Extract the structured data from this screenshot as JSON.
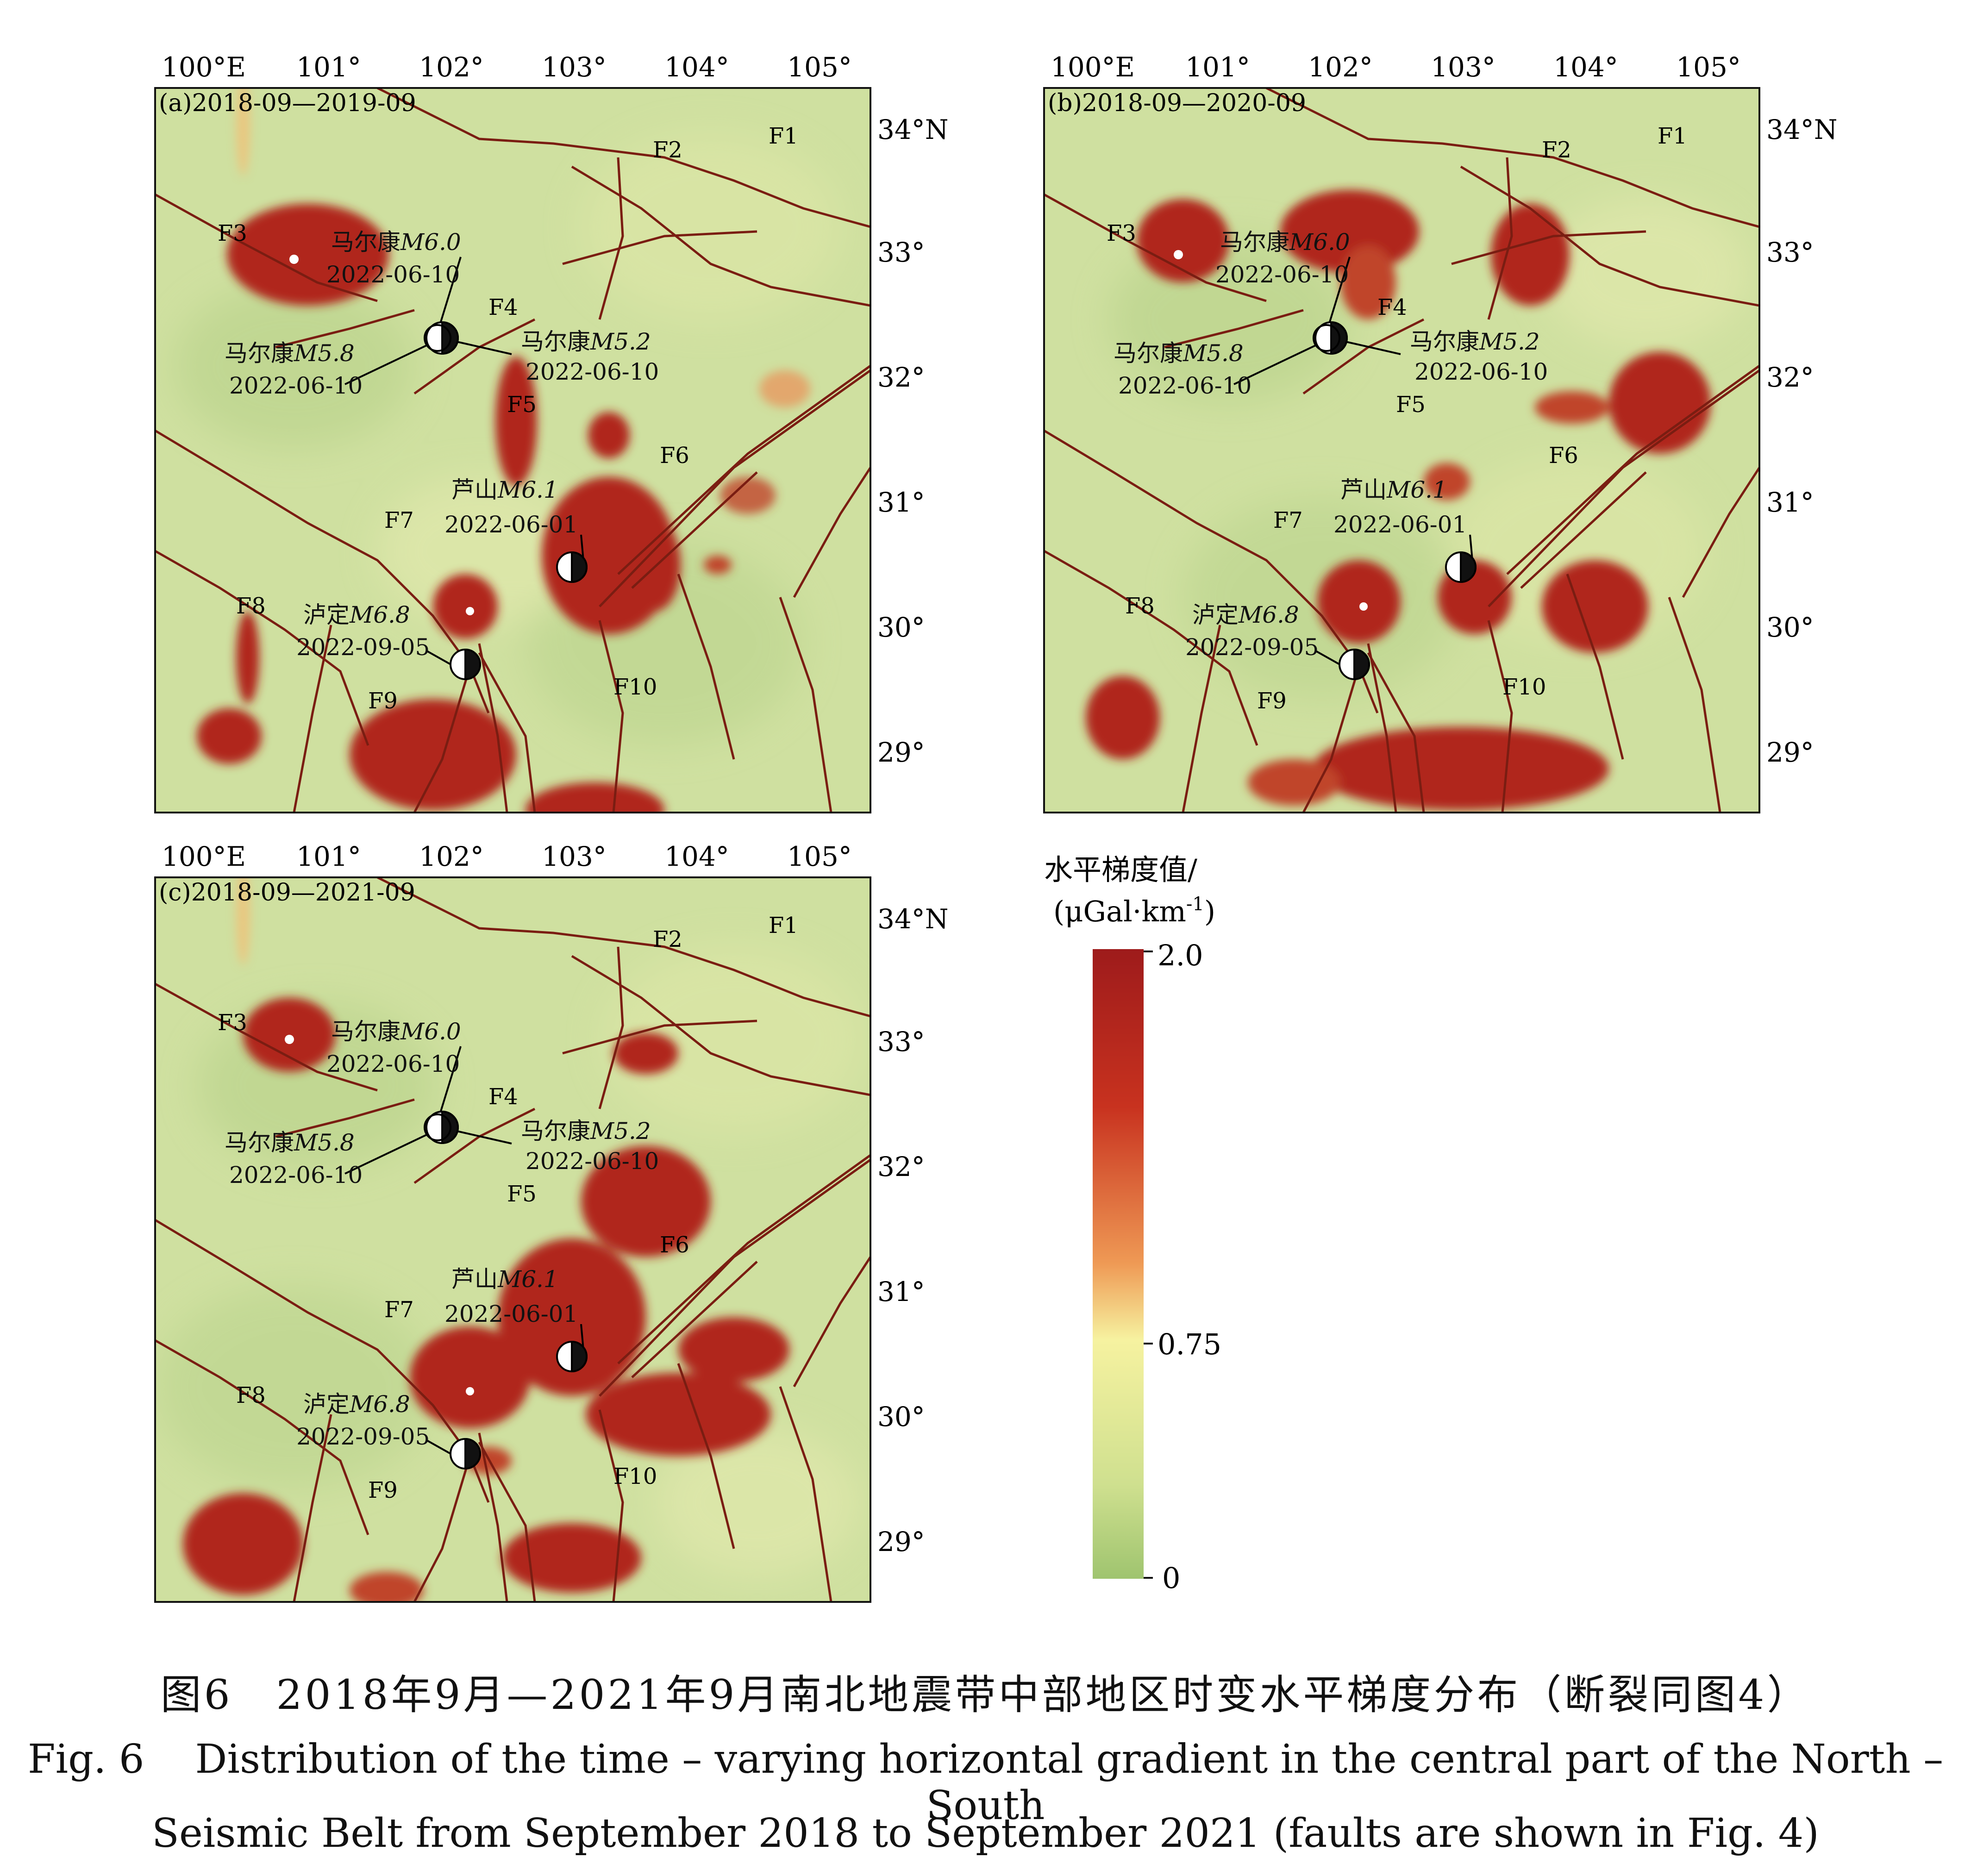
{
  "panels": [
    {
      "id": "a",
      "label": "(a)2018-09—2019-09",
      "lon_labels": [
        "100°E",
        "101°",
        "102°",
        "103°",
        "104°",
        "105°"
      ],
      "lat_labels": [
        "34°N",
        "33°",
        "32°",
        "31°",
        "30°",
        "29°"
      ],
      "fault_labels": [
        "F1",
        "F2",
        "F3",
        "F4",
        "F5",
        "F6",
        "F7",
        "F8",
        "F9",
        "F10"
      ],
      "events": [
        {
          "name": "马尔康",
          "mag": "M6.0",
          "date": "2022-06-10"
        },
        {
          "name": "马尔康",
          "mag": "M5.8",
          "date": "2022-06-10"
        },
        {
          "name": "马尔康",
          "mag": "M5.2",
          "date": "2022-06-10"
        },
        {
          "name": "芦山",
          "mag": "M6.1",
          "date": "2022-06-01"
        },
        {
          "name": "泸定",
          "mag": "M6.8",
          "date": "2022-09-05"
        }
      ]
    },
    {
      "id": "b",
      "label": "(b)2018-09—2020-09",
      "lon_labels": [
        "100°E",
        "101°",
        "102°",
        "103°",
        "104°",
        "105°"
      ],
      "lat_labels": [
        "34°N",
        "33°",
        "32°",
        "31°",
        "30°",
        "29°"
      ],
      "fault_labels": [
        "F1",
        "F2",
        "F3",
        "F4",
        "F5",
        "F6",
        "F7",
        "F8",
        "F9",
        "F10"
      ],
      "events": [
        {
          "name": "马尔康",
          "mag": "M6.0",
          "date": "2022-06-10"
        },
        {
          "name": "马尔康",
          "mag": "M5.8",
          "date": "2022-06-10"
        },
        {
          "name": "马尔康",
          "mag": "M5.2",
          "date": "2022-06-10"
        },
        {
          "name": "芦山",
          "mag": "M6.1",
          "date": "2022-06-01"
        },
        {
          "name": "泸定",
          "mag": "M6.8",
          "date": "2022-09-05"
        }
      ]
    },
    {
      "id": "c",
      "label": "(c)2018-09—2021-09",
      "lon_labels": [
        "100°E",
        "101°",
        "102°",
        "103°",
        "104°",
        "105°"
      ],
      "lat_labels": [
        "34°N",
        "33°",
        "32°",
        "31°",
        "30°",
        "29°"
      ],
      "fault_labels": [
        "F1",
        "F2",
        "F3",
        "F4",
        "F5",
        "F6",
        "F7",
        "F8",
        "F9",
        "F10"
      ],
      "events": [
        {
          "name": "马尔康",
          "mag": "M6.0",
          "date": "2022-06-10"
        },
        {
          "name": "马尔康",
          "mag": "M5.8",
          "date": "2022-06-10"
        },
        {
          "name": "马尔康",
          "mag": "M5.2",
          "date": "2022-06-10"
        },
        {
          "name": "芦山",
          "mag": "M6.1",
          "date": "2022-06-01"
        },
        {
          "name": "泸定",
          "mag": "M6.8",
          "date": "2022-09-05"
        }
      ]
    }
  ],
  "colorbar": {
    "title_line1": "水平梯度值/",
    "title_line2": "(μGal·km",
    "title_sup": "-1",
    "title_close": ")",
    "ticks": [
      {
        "value": 2.0,
        "label": "2.0"
      },
      {
        "value": 0.75,
        "label": "0.75"
      },
      {
        "value": 0,
        "label": "0"
      }
    ],
    "colors": {
      "high": "#9e1b1b",
      "mid": "#f6f2a0",
      "low": "#9fc46f"
    }
  },
  "colors": {
    "background": "#cfe0a0",
    "anomaly": "#b0281c",
    "fault": "#7a1d12"
  },
  "caption": {
    "cn": "图6　2018年9月—2021年9月南北地震带中部地区时变水平梯度分布（断裂同图4）",
    "en_fig": "Fig. 6",
    "en_line1": "Distribution of the time – varying horizontal gradient in the central part of the North – South",
    "en_line2": "Seismic Belt from September 2018 to September 2021 (faults are shown in Fig. 4)"
  }
}
